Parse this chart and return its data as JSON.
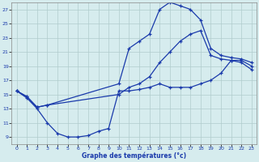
{
  "xlabel": "Graphe des températures (°c)",
  "bg_color": "#d6ecee",
  "line_color": "#1a3aab",
  "grid_color": "#b0cccc",
  "xlim": [
    -0.5,
    23.5
  ],
  "ylim": [
    8,
    28
  ],
  "xticks": [
    0,
    1,
    2,
    3,
    4,
    5,
    6,
    7,
    8,
    9,
    10,
    11,
    12,
    13,
    14,
    15,
    16,
    17,
    18,
    19,
    20,
    21,
    22,
    23
  ],
  "yticks": [
    9,
    11,
    13,
    15,
    17,
    19,
    21,
    23,
    25,
    27
  ],
  "line_top_x": [
    0,
    1,
    2,
    3,
    10,
    11,
    12,
    13,
    14,
    15,
    16,
    17,
    18,
    19,
    20,
    21,
    22,
    23
  ],
  "line_top_y": [
    15.5,
    14.7,
    13.2,
    13.5,
    16.5,
    21.5,
    22.5,
    23.5,
    27.0,
    28.0,
    27.5,
    27.0,
    25.5,
    21.5,
    20.5,
    20.2,
    20.0,
    19.5
  ],
  "line_mid_x": [
    0,
    1,
    2,
    3,
    10,
    11,
    12,
    13,
    14,
    15,
    16,
    17,
    18,
    19,
    20,
    21,
    22,
    23
  ],
  "line_mid_y": [
    15.5,
    14.7,
    13.2,
    13.5,
    15.0,
    16.0,
    16.5,
    17.5,
    19.5,
    21.0,
    22.5,
    23.5,
    24.0,
    20.5,
    20.0,
    19.8,
    19.5,
    18.5
  ],
  "line_bot_x": [
    0,
    1,
    2,
    3,
    4,
    5,
    6,
    7,
    8,
    9,
    10,
    11,
    12,
    13,
    14,
    15,
    16,
    17,
    18,
    19,
    20,
    21,
    22,
    23
  ],
  "line_bot_y": [
    15.5,
    14.5,
    13.0,
    11.0,
    9.5,
    9.0,
    9.0,
    9.2,
    9.8,
    10.2,
    15.5,
    15.5,
    15.7,
    16.0,
    16.5,
    16.0,
    16.0,
    16.0,
    16.5,
    17.0,
    18.0,
    19.8,
    19.8,
    19.0
  ]
}
